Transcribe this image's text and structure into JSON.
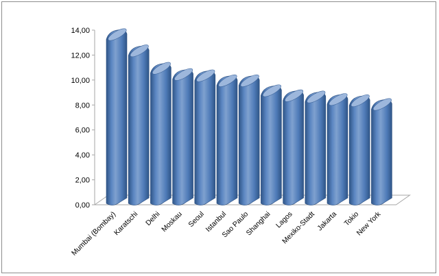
{
  "chart_data": {
    "type": "bar",
    "title": "",
    "xlabel": "",
    "ylabel": "",
    "categories": [
      "Mumbai (Bombay)",
      "Karatschi",
      "Delhi",
      "Moskau",
      "Seoul",
      "Istanbul",
      "Sao Paulo",
      "Shanghai",
      "Lagos",
      "Mexiko-Stadt",
      "Jakarta",
      "Tokio",
      "New York"
    ],
    "values": [
      13.7,
      12.4,
      11.0,
      10.5,
      10.4,
      10.0,
      10.0,
      9.2,
      8.8,
      8.7,
      8.5,
      8.4,
      8.1
    ],
    "ylim": [
      0,
      14
    ],
    "yticks": [
      "0,00",
      "2,00",
      "4,00",
      "6,00",
      "8,00",
      "10,00",
      "12,00",
      "14,00"
    ],
    "grid": false,
    "legend": "none",
    "colors": {
      "bar_light": "#7fa1cf",
      "bar_mid": "#4f7bb8",
      "bar_dark": "#2f5587",
      "bar_top": "#9db7dc",
      "axis": "#a6a6a6"
    }
  }
}
